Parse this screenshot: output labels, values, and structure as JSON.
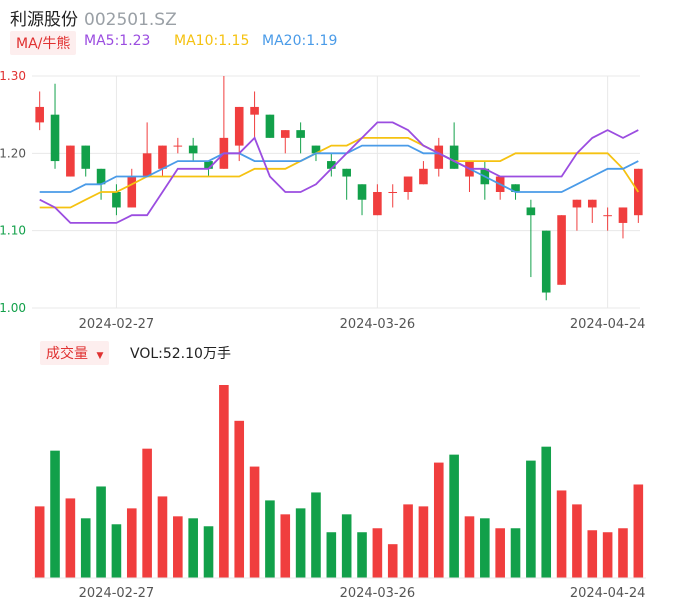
{
  "header": {
    "name": "利源股份",
    "code": "002501.SZ"
  },
  "ma_legend": {
    "chip": "MA/牛熊",
    "items": [
      {
        "label": "MA5:1.23",
        "color": "#9b4de0"
      },
      {
        "label": "MA10:1.15",
        "color": "#f5c211"
      },
      {
        "label": "MA20:1.19",
        "color": "#4a9be8"
      }
    ]
  },
  "volume_legend": {
    "chip": "成交量",
    "chip_icon": "caret-down-icon",
    "label": "VOL:52.10万手"
  },
  "colors": {
    "up": "#f03e3e",
    "down": "#12a04a",
    "grid": "#e8e8e8"
  },
  "chart_data": [
    {
      "type": "candlestick",
      "ylim": [
        1.0,
        1.3
      ],
      "yticks": [
        "1.30",
        "1.20",
        "1.10",
        "1.00"
      ],
      "ytick_colors": [
        "#e03131",
        "#555555",
        "#12a04a",
        "#12a04a"
      ],
      "xtick_labels": [
        {
          "label": "2024-02-27",
          "index": 5
        },
        {
          "label": "2024-03-26",
          "index": 22
        },
        {
          "label": "2024-04-24",
          "index": 37
        }
      ],
      "ohlc": [
        [
          1.24,
          1.26,
          1.23,
          1.28
        ],
        [
          1.25,
          1.19,
          1.18,
          1.29
        ],
        [
          1.17,
          1.21,
          1.17,
          1.21
        ],
        [
          1.21,
          1.18,
          1.17,
          1.21
        ],
        [
          1.18,
          1.16,
          1.14,
          1.18
        ],
        [
          1.15,
          1.13,
          1.12,
          1.16
        ],
        [
          1.13,
          1.17,
          1.13,
          1.18
        ],
        [
          1.17,
          1.2,
          1.17,
          1.24
        ],
        [
          1.18,
          1.21,
          1.17,
          1.21
        ],
        [
          1.21,
          1.21,
          1.2,
          1.22
        ],
        [
          1.21,
          1.2,
          1.19,
          1.22
        ],
        [
          1.19,
          1.18,
          1.17,
          1.19
        ],
        [
          1.18,
          1.22,
          1.18,
          1.3
        ],
        [
          1.21,
          1.26,
          1.19,
          1.26
        ],
        [
          1.25,
          1.26,
          1.22,
          1.28
        ],
        [
          1.25,
          1.22,
          1.22,
          1.25
        ],
        [
          1.22,
          1.23,
          1.2,
          1.23
        ],
        [
          1.23,
          1.22,
          1.2,
          1.24
        ],
        [
          1.21,
          1.2,
          1.19,
          1.21
        ],
        [
          1.19,
          1.18,
          1.17,
          1.2
        ],
        [
          1.18,
          1.17,
          1.14,
          1.18
        ],
        [
          1.16,
          1.14,
          1.12,
          1.16
        ],
        [
          1.12,
          1.15,
          1.12,
          1.16
        ],
        [
          1.15,
          1.15,
          1.13,
          1.16
        ],
        [
          1.15,
          1.17,
          1.14,
          1.17
        ],
        [
          1.16,
          1.18,
          1.16,
          1.19
        ],
        [
          1.18,
          1.21,
          1.17,
          1.22
        ],
        [
          1.21,
          1.18,
          1.18,
          1.24
        ],
        [
          1.17,
          1.19,
          1.15,
          1.19
        ],
        [
          1.18,
          1.16,
          1.14,
          1.19
        ],
        [
          1.15,
          1.17,
          1.14,
          1.17
        ],
        [
          1.16,
          1.15,
          1.14,
          1.16
        ],
        [
          1.13,
          1.12,
          1.04,
          1.14
        ],
        [
          1.1,
          1.02,
          1.01,
          1.1
        ],
        [
          1.03,
          1.12,
          1.03,
          1.12
        ],
        [
          1.13,
          1.14,
          1.1,
          1.14
        ],
        [
          1.13,
          1.14,
          1.11,
          1.14
        ],
        [
          1.12,
          1.12,
          1.1,
          1.13
        ],
        [
          1.11,
          1.13,
          1.09,
          1.13
        ],
        [
          1.12,
          1.18,
          1.11,
          1.18
        ]
      ],
      "ma5": [
        1.14,
        1.13,
        1.11,
        1.11,
        1.11,
        1.11,
        1.12,
        1.12,
        1.15,
        1.18,
        1.18,
        1.18,
        1.2,
        1.2,
        1.22,
        1.17,
        1.15,
        1.15,
        1.16,
        1.18,
        1.2,
        1.22,
        1.24,
        1.24,
        1.23,
        1.21,
        1.2,
        1.19,
        1.18,
        1.18,
        1.17,
        1.17,
        1.17,
        1.17,
        1.17,
        1.2,
        1.22,
        1.23,
        1.22,
        1.23
      ],
      "ma10": [
        1.13,
        1.13,
        1.13,
        1.14,
        1.15,
        1.15,
        1.16,
        1.17,
        1.17,
        1.17,
        1.17,
        1.17,
        1.17,
        1.17,
        1.18,
        1.18,
        1.18,
        1.19,
        1.2,
        1.21,
        1.21,
        1.22,
        1.22,
        1.22,
        1.22,
        1.21,
        1.2,
        1.19,
        1.19,
        1.19,
        1.19,
        1.2,
        1.2,
        1.2,
        1.2,
        1.2,
        1.2,
        1.2,
        1.18,
        1.15
      ],
      "ma20": [
        1.15,
        1.15,
        1.15,
        1.16,
        1.16,
        1.17,
        1.17,
        1.17,
        1.18,
        1.19,
        1.19,
        1.19,
        1.2,
        1.2,
        1.19,
        1.19,
        1.19,
        1.19,
        1.2,
        1.2,
        1.2,
        1.21,
        1.21,
        1.21,
        1.21,
        1.2,
        1.2,
        1.19,
        1.18,
        1.17,
        1.16,
        1.15,
        1.15,
        1.15,
        1.15,
        1.16,
        1.17,
        1.18,
        1.18,
        1.19
      ]
    },
    {
      "type": "bar",
      "xtick_labels": [
        {
          "label": "2024-02-27",
          "index": 5
        },
        {
          "label": "2024-03-26",
          "index": 22
        },
        {
          "label": "2024-04-24",
          "index": 37
        }
      ],
      "values": [
        0.36,
        0.64,
        0.4,
        0.3,
        0.46,
        0.27,
        0.35,
        0.65,
        0.41,
        0.31,
        0.3,
        0.26,
        0.97,
        0.79,
        0.56,
        0.39,
        0.32,
        0.35,
        0.43,
        0.23,
        0.32,
        0.23,
        0.25,
        0.17,
        0.37,
        0.36,
        0.58,
        0.62,
        0.31,
        0.3,
        0.25,
        0.25,
        0.59,
        0.66,
        0.44,
        0.37,
        0.24,
        0.23,
        0.25,
        0.47
      ]
    }
  ]
}
